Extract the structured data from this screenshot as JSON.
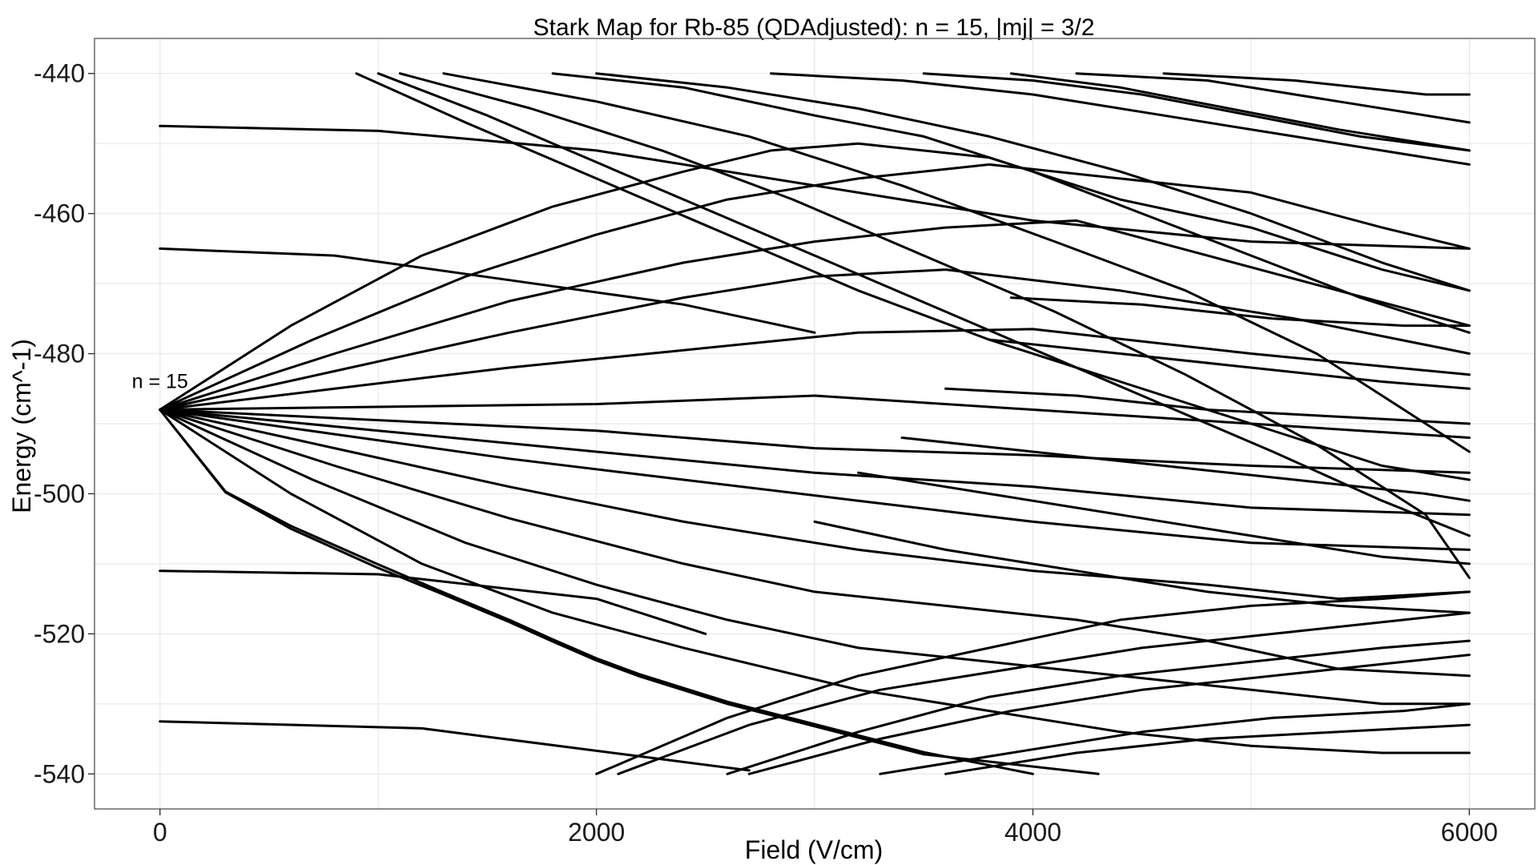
{
  "chart_data": {
    "type": "line",
    "title": "Stark Map for Rb-85 (QDAdjusted): n = 15, |mj| = 3/2",
    "xlabel": "Field (V/cm)",
    "ylabel": "Energy (cm^-1)",
    "xlim": [
      -300,
      6300
    ],
    "ylim": [
      -545,
      -435
    ],
    "xticks": [
      0,
      2000,
      4000,
      6000
    ],
    "yticks": [
      -540,
      -520,
      -500,
      -480,
      -460,
      -440
    ],
    "grid": true,
    "legend": "none",
    "annotations": [
      {
        "text": "n = 15",
        "x": 0,
        "y": -484
      }
    ],
    "series": [
      {
        "x": [
          0,
          1000,
          2000,
          3000,
          4000,
          5000,
          6000
        ],
        "y": [
          -447.5,
          -448.2,
          -451,
          -456,
          -461,
          -464,
          -465
        ]
      },
      {
        "x": [
          0,
          800,
          1600,
          2400,
          3000
        ],
        "y": [
          -465,
          -466,
          -469.5,
          -473,
          -477
        ]
      },
      {
        "x": [
          0,
          1000,
          2000,
          2200,
          2500
        ],
        "y": [
          -511,
          -511.5,
          -515,
          -517,
          -520
        ]
      },
      {
        "x": [
          0,
          1200,
          2200,
          2700
        ],
        "y": [
          -532.5,
          -533.5,
          -537.5,
          -539.5
        ]
      },
      {
        "x": [
          0,
          1000,
          2000,
          3000,
          4000,
          5000,
          6000
        ],
        "y": [
          -488,
          -487.6,
          -487.2,
          -486,
          -488,
          -490,
          -492
        ]
      },
      {
        "x": [
          0,
          1000,
          2000,
          3000,
          4000,
          5000,
          6000
        ],
        "y": [
          -488,
          -489.5,
          -491,
          -493.5,
          -494.5,
          -496,
          -497
        ]
      },
      {
        "x": [
          0,
          1000,
          2000,
          3000,
          4000,
          5000,
          6000
        ],
        "y": [
          -488,
          -491,
          -494,
          -497,
          -499,
          -502,
          -503
        ]
      },
      {
        "x": [
          0,
          800,
          1600,
          2400,
          3200,
          4000,
          5000,
          6000
        ],
        "y": [
          -488,
          -485,
          -482,
          -479.5,
          -477,
          -476.5,
          -480,
          -483
        ]
      },
      {
        "x": [
          0,
          800,
          1600,
          2400,
          3200,
          4000,
          5000,
          6000
        ],
        "y": [
          -488,
          -491.5,
          -495,
          -498,
          -501,
          -504,
          -507,
          -508
        ]
      },
      {
        "x": [
          0,
          800,
          1600,
          2400,
          3000,
          3600,
          4400,
          5200,
          6000
        ],
        "y": [
          -488,
          -482.5,
          -477,
          -472,
          -469,
          -468,
          -471,
          -475,
          -480
        ]
      },
      {
        "x": [
          0,
          800,
          1600,
          2400,
          3200,
          4000,
          4800,
          5400,
          6000
        ],
        "y": [
          -488,
          -493.5,
          -499,
          -504,
          -508,
          -511,
          -513,
          -515,
          -514
        ]
      },
      {
        "x": [
          0,
          800,
          1600,
          2400,
          3000,
          3600,
          4200,
          4800,
          5400,
          6000
        ],
        "y": [
          -488,
          -480,
          -472.5,
          -467,
          -464,
          -462,
          -461,
          -466,
          -471,
          -476
        ]
      },
      {
        "x": [
          0,
          800,
          1600,
          2400,
          3000,
          3600,
          4200,
          4800,
          5400,
          6000
        ],
        "y": [
          -488,
          -496,
          -503.5,
          -510,
          -514,
          -516,
          -518,
          -521,
          -525,
          -526
        ]
      },
      {
        "x": [
          0,
          700,
          1400,
          2000,
          2600,
          3200,
          3800,
          4400,
          5000,
          5600,
          6000
        ],
        "y": [
          -488,
          -478,
          -469,
          -463,
          -458,
          -455,
          -453,
          -455,
          -457,
          -462,
          -465
        ]
      },
      {
        "x": [
          0,
          700,
          1400,
          2000,
          2600,
          3200,
          3800,
          4400,
          5000,
          5600,
          6000
        ],
        "y": [
          -488,
          -498,
          -507,
          -513,
          -518,
          -522,
          -524,
          -526,
          -528,
          -530,
          -530
        ]
      },
      {
        "x": [
          0,
          600,
          1200,
          1800,
          2400,
          2800,
          3200,
          3800,
          4400,
          5000,
          5600,
          6000
        ],
        "y": [
          -488,
          -476,
          -466,
          -459,
          -454,
          -451,
          -450,
          -452,
          -458,
          -462,
          -468,
          -471
        ]
      },
      {
        "x": [
          0,
          600,
          1200,
          1800,
          2400,
          2800,
          3200,
          3800,
          4400,
          5000,
          5600,
          6000
        ],
        "y": [
          -488,
          -500,
          -510,
          -517,
          -522,
          -525,
          -528,
          -531,
          -534,
          -536,
          -537,
          -537
        ]
      },
      {
        "x": [
          0,
          300,
          600,
          1000,
          1300,
          1600,
          1800,
          2000,
          2200,
          2600,
          3000,
          3500,
          4000
        ],
        "y": [
          -488,
          -499.7,
          -504.6,
          -510.1,
          -514.1,
          -518,
          -520.8,
          -523.5,
          -525.8,
          -529.7,
          -532.9,
          -536.9,
          -540
        ]
      },
      {
        "x": [
          0,
          300,
          600,
          1000,
          1300,
          1600,
          1800,
          2000,
          2200,
          2600,
          3000,
          3500,
          4300
        ],
        "y": [
          -488,
          -499.8,
          -505,
          -510.6,
          -514.4,
          -518.3,
          -521.1,
          -523.8,
          -526.1,
          -530,
          -533.2,
          -537.2,
          -540
        ]
      },
      {
        "x": [
          900,
          1400,
          2000,
          2600,
          3200,
          3800,
          4400,
          5000,
          5600,
          6000
        ],
        "y": [
          -440,
          -447,
          -455,
          -463,
          -471,
          -478,
          -484,
          -490,
          -496,
          -498
        ]
      },
      {
        "x": [
          1000,
          1500,
          2100,
          2700,
          3300,
          3900,
          4500,
          5100,
          5600,
          6000
        ],
        "y": [
          -440,
          -446,
          -454,
          -462,
          -470,
          -478,
          -486,
          -494,
          -501,
          -506
        ]
      },
      {
        "x": [
          1100,
          1700,
          2300,
          2900,
          3500,
          4100,
          4700,
          5300,
          5800,
          6000
        ],
        "y": [
          -440,
          -445,
          -451,
          -458,
          -466,
          -474,
          -483,
          -493,
          -503,
          -512
        ]
      },
      {
        "x": [
          1300,
          2000,
          2700,
          3400,
          4100,
          4700,
          5300,
          5800,
          6000
        ],
        "y": [
          -440,
          -444,
          -449,
          -456,
          -464,
          -471,
          -480,
          -490,
          -494
        ]
      },
      {
        "x": [
          1800,
          2400,
          3000,
          3500,
          4000,
          4500,
          5000,
          5500,
          6000
        ],
        "y": [
          -440,
          -442,
          -446,
          -449,
          -454,
          -460,
          -466,
          -472,
          -477
        ]
      },
      {
        "x": [
          2000,
          2600,
          3200,
          3800,
          4400,
          5000,
          5600,
          6000
        ],
        "y": [
          -440,
          -442,
          -445,
          -449,
          -454,
          -460,
          -467,
          -471
        ]
      },
      {
        "x": [
          2000,
          2600,
          3200,
          3800,
          4400,
          5000,
          5600,
          6000
        ],
        "y": [
          -540,
          -532,
          -526,
          -522,
          -518,
          -516,
          -515,
          -514
        ]
      },
      {
        "x": [
          2100,
          2700,
          3300,
          3900,
          4500,
          5100,
          5700,
          6000
        ],
        "y": [
          -540,
          -533,
          -528,
          -525,
          -522,
          -520,
          -518,
          -517
        ]
      },
      {
        "x": [
          2600,
          3200,
          3800,
          4400,
          5000,
          5600,
          6000
        ],
        "y": [
          -540,
          -534,
          -529,
          -526,
          -524,
          -522,
          -521
        ]
      },
      {
        "x": [
          2700,
          3300,
          3900,
          4500,
          5100,
          5700,
          6000
        ],
        "y": [
          -540,
          -535,
          -531,
          -528,
          -526,
          -524,
          -523
        ]
      },
      {
        "x": [
          3300,
          3900,
          4500,
          5100,
          5700,
          6000
        ],
        "y": [
          -540,
          -537,
          -534,
          -532,
          -531,
          -530
        ]
      },
      {
        "x": [
          3600,
          4200,
          4800,
          5400,
          6000
        ],
        "y": [
          -540,
          -537,
          -535,
          -534,
          -533
        ]
      },
      {
        "x": [
          2800,
          3400,
          4000,
          4600,
          5200,
          5800,
          6000
        ],
        "y": [
          -440,
          -441,
          -443,
          -446,
          -449,
          -452,
          -453
        ]
      },
      {
        "x": [
          3500,
          4000,
          4500,
          5000,
          5500,
          6000
        ],
        "y": [
          -440,
          -441,
          -443,
          -446,
          -449,
          -451
        ]
      },
      {
        "x": [
          3900,
          4400,
          4900,
          5400,
          6000
        ],
        "y": [
          -440,
          -442,
          -445,
          -448,
          -451
        ]
      },
      {
        "x": [
          4200,
          4800,
          5400,
          6000
        ],
        "y": [
          -440,
          -441,
          -444,
          -447
        ]
      },
      {
        "x": [
          4600,
          5200,
          5800,
          6000
        ],
        "y": [
          -440,
          -441,
          -443,
          -443
        ]
      },
      {
        "x": [
          3000,
          3600,
          4200,
          4800,
          5400,
          6000
        ],
        "y": [
          -504,
          -508,
          -511,
          -514,
          -516,
          -517
        ]
      },
      {
        "x": [
          3200,
          3800,
          4400,
          5000,
          5600,
          6000
        ],
        "y": [
          -497,
          -500,
          -503,
          -506,
          -509,
          -510
        ]
      },
      {
        "x": [
          3400,
          4000,
          4600,
          5200,
          5800,
          6000
        ],
        "y": [
          -492,
          -494,
          -496,
          -498,
          -500,
          -501
        ]
      },
      {
        "x": [
          3600,
          4200,
          4800,
          5400,
          6000
        ],
        "y": [
          -485,
          -486,
          -488,
          -489,
          -490
        ]
      },
      {
        "x": [
          3800,
          4400,
          5000,
          5600,
          6000
        ],
        "y": [
          -478,
          -480,
          -482,
          -484,
          -485
        ]
      },
      {
        "x": [
          3900,
          4500,
          5100,
          5700,
          6000
        ],
        "y": [
          -472,
          -473,
          -475,
          -476,
          -476
        ]
      }
    ]
  }
}
